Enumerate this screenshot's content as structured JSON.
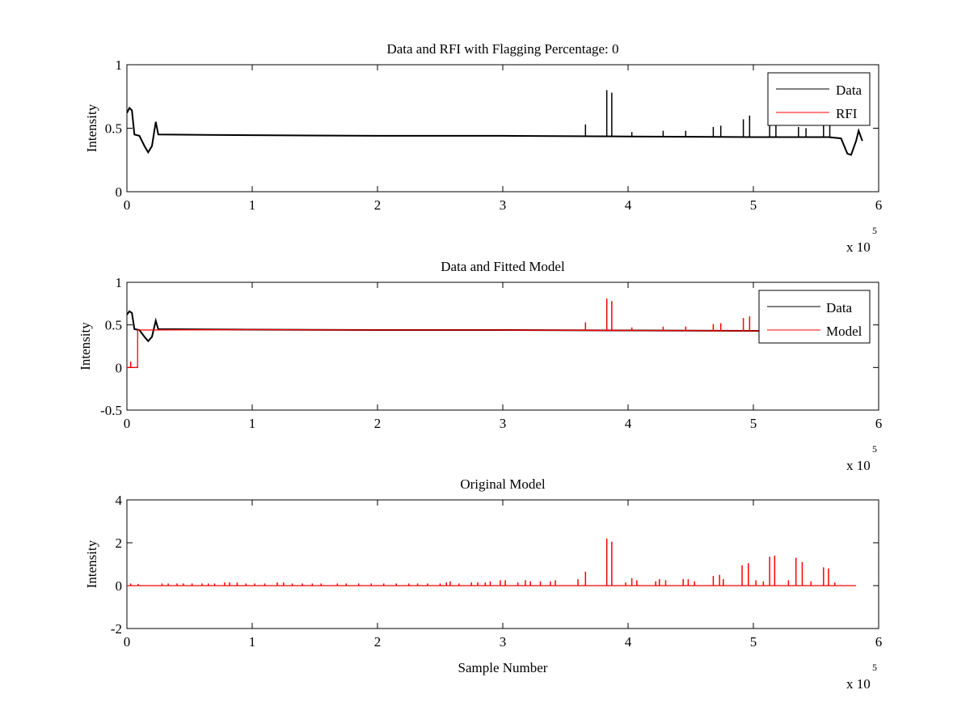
{
  "chart_data": [
    {
      "type": "line",
      "title": "Data and RFI with Flagging Percentage: 0",
      "xlabel": "",
      "ylabel": "Intensity",
      "xlim": [
        0,
        600000
      ],
      "ylim": [
        0,
        1
      ],
      "x_ticks": [
        0,
        1,
        2,
        3,
        4,
        5,
        6
      ],
      "y_ticks": [
        "0",
        "0.5",
        "1"
      ],
      "x_exponent_base": "x 10",
      "x_exponent_power": "5",
      "grid": false,
      "legend": "top-right",
      "legend_entries": [
        "Data",
        "RFI"
      ],
      "series": [
        {
          "name": "Data",
          "color": "#000000",
          "baseline": [
            [
              0,
              0.62
            ],
            [
              2000,
              0.66
            ],
            [
              4000,
              0.64
            ],
            [
              6000,
              0.45
            ],
            [
              10000,
              0.44
            ],
            [
              14000,
              0.36
            ],
            [
              17000,
              0.31
            ],
            [
              20000,
              0.36
            ],
            [
              23000,
              0.55
            ],
            [
              25000,
              0.45
            ],
            [
              100000,
              0.445
            ],
            [
              200000,
              0.44
            ],
            [
              300000,
              0.44
            ],
            [
              400000,
              0.435
            ],
            [
              500000,
              0.43
            ],
            [
              560000,
              0.43
            ],
            [
              570000,
              0.42
            ],
            [
              575000,
              0.3
            ],
            [
              578000,
              0.29
            ],
            [
              582000,
              0.4
            ],
            [
              584000,
              0.48
            ],
            [
              587000,
              0.4
            ]
          ],
          "spikes": [
            [
              366000,
              0.53
            ],
            [
              383000,
              0.8
            ],
            [
              387000,
              0.78
            ],
            [
              403000,
              0.47
            ],
            [
              428000,
              0.48
            ],
            [
              446000,
              0.48
            ],
            [
              468000,
              0.51
            ],
            [
              474000,
              0.52
            ],
            [
              492000,
              0.57
            ],
            [
              497000,
              0.6
            ],
            [
              513000,
              0.54
            ],
            [
              518000,
              0.55
            ],
            [
              536000,
              0.51
            ],
            [
              542000,
              0.5
            ],
            [
              556000,
              0.53
            ],
            [
              561000,
              0.53
            ]
          ]
        },
        {
          "name": "RFI",
          "color": "#ff0000",
          "points": []
        }
      ]
    },
    {
      "type": "line",
      "title": "Data and Fitted Model",
      "xlabel": "",
      "ylabel": "Intensity",
      "xlim": [
        0,
        600000
      ],
      "ylim": [
        -0.5,
        1
      ],
      "x_ticks": [
        0,
        1,
        2,
        3,
        4,
        5,
        6
      ],
      "y_ticks": [
        "-0.5",
        "0",
        "0.5",
        "1"
      ],
      "x_exponent_base": "x 10",
      "x_exponent_power": "5",
      "grid": false,
      "legend": "top-right",
      "legend_entries": [
        "Data",
        "Model"
      ],
      "series": [
        {
          "name": "Data",
          "color": "#000000",
          "baseline": [
            [
              0,
              0.62
            ],
            [
              2000,
              0.66
            ],
            [
              4000,
              0.64
            ],
            [
              6000,
              0.45
            ],
            [
              10000,
              0.44
            ],
            [
              14000,
              0.36
            ],
            [
              17000,
              0.31
            ],
            [
              20000,
              0.36
            ],
            [
              23000,
              0.55
            ],
            [
              25000,
              0.45
            ],
            [
              100000,
              0.445
            ],
            [
              200000,
              0.44
            ],
            [
              300000,
              0.44
            ],
            [
              400000,
              0.435
            ],
            [
              500000,
              0.43
            ],
            [
              580000,
              0.43
            ]
          ],
          "spikes": []
        },
        {
          "name": "Model",
          "color": "#ff0000",
          "baseline": [
            [
              0,
              0
            ],
            [
              8500,
              0
            ],
            [
              8600,
              0.44
            ],
            [
              100000,
              0.445
            ],
            [
              200000,
              0.44
            ],
            [
              300000,
              0.44
            ],
            [
              400000,
              0.435
            ],
            [
              500000,
              0.43
            ],
            [
              580000,
              0.43
            ]
          ],
          "spikes": [
            [
              3000,
              0.07
            ],
            [
              366000,
              0.53
            ],
            [
              383000,
              0.81
            ],
            [
              387000,
              0.78
            ],
            [
              403000,
              0.47
            ],
            [
              428000,
              0.48
            ],
            [
              446000,
              0.48
            ],
            [
              468000,
              0.51
            ],
            [
              474000,
              0.52
            ],
            [
              492000,
              0.58
            ],
            [
              497000,
              0.6
            ]
          ]
        }
      ]
    },
    {
      "type": "line",
      "title": "Original Model",
      "xlabel": "Sample Number",
      "ylabel": "Intensity",
      "xlim": [
        0,
        600000
      ],
      "ylim": [
        -2,
        4
      ],
      "x_ticks": [
        0,
        1,
        2,
        3,
        4,
        5,
        6
      ],
      "y_ticks": [
        "-2",
        "0",
        "2",
        "4"
      ],
      "x_exponent_base": "x 10",
      "x_exponent_power": "5",
      "grid": false,
      "legend": "none",
      "legend_entries": [],
      "series": [
        {
          "name": "",
          "color": "#ff0000",
          "baseline": [
            [
              0,
              0
            ],
            [
              582000,
              0
            ]
          ],
          "spikes": [
            [
              3000,
              0.1
            ],
            [
              9000,
              0.08
            ],
            [
              28000,
              0.1
            ],
            [
              33000,
              0.1
            ],
            [
              40000,
              0.1
            ],
            [
              45000,
              0.1
            ],
            [
              52000,
              0.1
            ],
            [
              60000,
              0.1
            ],
            [
              65000,
              0.1
            ],
            [
              70000,
              0.1
            ],
            [
              78000,
              0.15
            ],
            [
              82000,
              0.15
            ],
            [
              88000,
              0.15
            ],
            [
              95000,
              0.1
            ],
            [
              102000,
              0.1
            ],
            [
              110000,
              0.1
            ],
            [
              120000,
              0.15
            ],
            [
              125000,
              0.15
            ],
            [
              132000,
              0.1
            ],
            [
              140000,
              0.1
            ],
            [
              148000,
              0.1
            ],
            [
              155000,
              0.1
            ],
            [
              168000,
              0.1
            ],
            [
              175000,
              0.1
            ],
            [
              185000,
              0.1
            ],
            [
              195000,
              0.1
            ],
            [
              205000,
              0.1
            ],
            [
              215000,
              0.1
            ],
            [
              225000,
              0.1
            ],
            [
              232000,
              0.1
            ],
            [
              240000,
              0.1
            ],
            [
              250000,
              0.1
            ],
            [
              255000,
              0.15
            ],
            [
              258000,
              0.2
            ],
            [
              265000,
              0.1
            ],
            [
              275000,
              0.15
            ],
            [
              280000,
              0.15
            ],
            [
              286000,
              0.15
            ],
            [
              290000,
              0.2
            ],
            [
              298000,
              0.25
            ],
            [
              302000,
              0.25
            ],
            [
              312000,
              0.15
            ],
            [
              318000,
              0.25
            ],
            [
              322000,
              0.2
            ],
            [
              330000,
              0.2
            ],
            [
              338000,
              0.2
            ],
            [
              342000,
              0.25
            ],
            [
              360000,
              0.3
            ],
            [
              366000,
              0.65
            ],
            [
              383000,
              2.2
            ],
            [
              387000,
              2.05
            ],
            [
              398000,
              0.15
            ],
            [
              403000,
              0.35
            ],
            [
              407000,
              0.25
            ],
            [
              422000,
              0.2
            ],
            [
              425000,
              0.3
            ],
            [
              430000,
              0.25
            ],
            [
              444000,
              0.3
            ],
            [
              448000,
              0.3
            ],
            [
              453000,
              0.2
            ],
            [
              468000,
              0.45
            ],
            [
              473000,
              0.5
            ],
            [
              476000,
              0.3
            ],
            [
              491000,
              0.95
            ],
            [
              496000,
              1.05
            ],
            [
              502000,
              0.25
            ],
            [
              508000,
              0.2
            ],
            [
              513000,
              1.35
            ],
            [
              517000,
              1.4
            ],
            [
              528000,
              0.25
            ],
            [
              534000,
              1.3
            ],
            [
              539000,
              1.1
            ],
            [
              546000,
              0.2
            ],
            [
              556000,
              0.85
            ],
            [
              560000,
              0.8
            ],
            [
              565000,
              0.15
            ]
          ]
        }
      ]
    }
  ]
}
